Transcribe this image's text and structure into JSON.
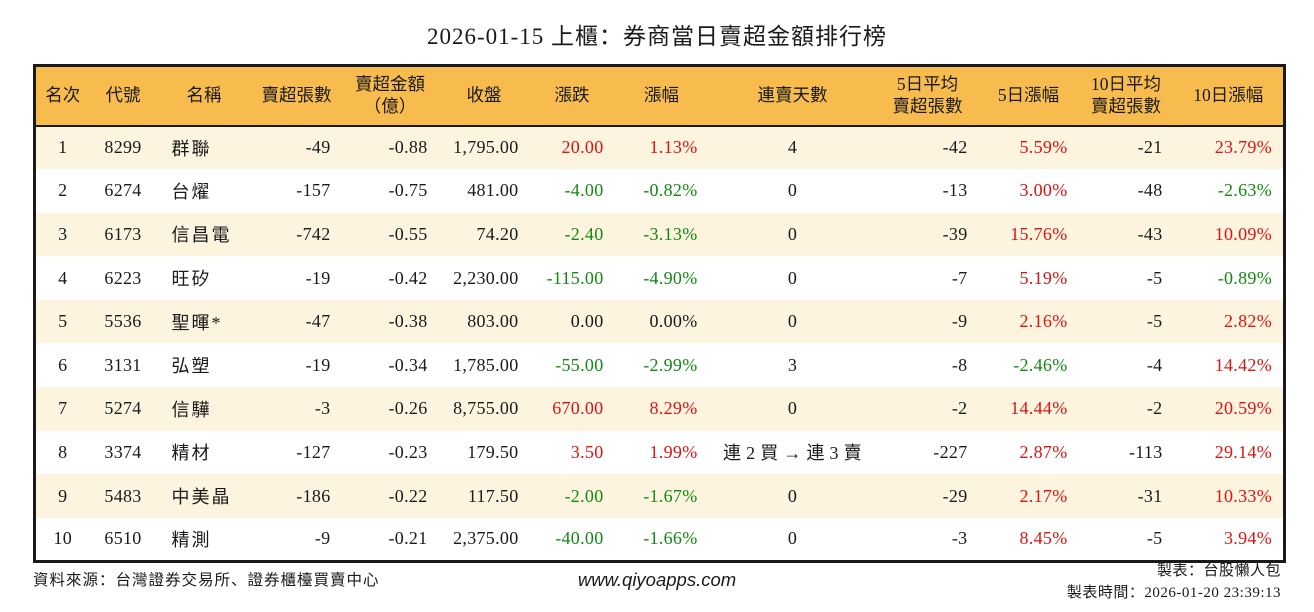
{
  "title": "2026-01-15 上櫃：券商當日賣超金額排行榜",
  "colors": {
    "header_bg": "#F7BC4D",
    "stripe_bg": "#FCF4DE",
    "border": "#1A1A1A",
    "up": "#E01212",
    "down": "#128A12",
    "text": "#1A1A1A"
  },
  "table": {
    "headers": [
      "名次",
      "代號",
      "名稱",
      "賣超張數",
      "賣超金額\n（億）",
      "收盤",
      "漲跌",
      "漲幅",
      "連賣天數",
      "5日平均\n賣超張數",
      "5日漲幅",
      "10日平均\n賣超張數",
      "10日漲幅"
    ],
    "rows": [
      {
        "rank": "1",
        "code": "8299",
        "name": "群聯",
        "net_sell": "-49",
        "amount": "-0.88",
        "close": "1,795.00",
        "change": "20.00",
        "change_pct": "1.13%",
        "streak": "4",
        "avg5_net_sell": "-42",
        "pct_5d": "5.59%",
        "avg10_net_sell": "-21",
        "pct_10d": "23.79%",
        "change_tone": "up",
        "pct5_tone": "up",
        "pct10_tone": "up"
      },
      {
        "rank": "2",
        "code": "6274",
        "name": "台燿",
        "net_sell": "-157",
        "amount": "-0.75",
        "close": "481.00",
        "change": "-4.00",
        "change_pct": "-0.82%",
        "streak": "0",
        "avg5_net_sell": "-13",
        "pct_5d": "3.00%",
        "avg10_net_sell": "-48",
        "pct_10d": "-2.63%",
        "change_tone": "down",
        "pct5_tone": "up",
        "pct10_tone": "down"
      },
      {
        "rank": "3",
        "code": "6173",
        "name": "信昌電",
        "net_sell": "-742",
        "amount": "-0.55",
        "close": "74.20",
        "change": "-2.40",
        "change_pct": "-3.13%",
        "streak": "0",
        "avg5_net_sell": "-39",
        "pct_5d": "15.76%",
        "avg10_net_sell": "-43",
        "pct_10d": "10.09%",
        "change_tone": "down",
        "pct5_tone": "up",
        "pct10_tone": "up"
      },
      {
        "rank": "4",
        "code": "6223",
        "name": "旺矽",
        "net_sell": "-19",
        "amount": "-0.42",
        "close": "2,230.00",
        "change": "-115.00",
        "change_pct": "-4.90%",
        "streak": "0",
        "avg5_net_sell": "-7",
        "pct_5d": "5.19%",
        "avg10_net_sell": "-5",
        "pct_10d": "-0.89%",
        "change_tone": "down",
        "pct5_tone": "up",
        "pct10_tone": "down"
      },
      {
        "rank": "5",
        "code": "5536",
        "name": "聖暉*",
        "net_sell": "-47",
        "amount": "-0.38",
        "close": "803.00",
        "change": "0.00",
        "change_pct": "0.00%",
        "streak": "0",
        "avg5_net_sell": "-9",
        "pct_5d": "2.16%",
        "avg10_net_sell": "-5",
        "pct_10d": "2.82%",
        "change_tone": "flat",
        "pct5_tone": "up",
        "pct10_tone": "up"
      },
      {
        "rank": "6",
        "code": "3131",
        "name": "弘塑",
        "net_sell": "-19",
        "amount": "-0.34",
        "close": "1,785.00",
        "change": "-55.00",
        "change_pct": "-2.99%",
        "streak": "3",
        "avg5_net_sell": "-8",
        "pct_5d": "-2.46%",
        "avg10_net_sell": "-4",
        "pct_10d": "14.42%",
        "change_tone": "down",
        "pct5_tone": "down",
        "pct10_tone": "up"
      },
      {
        "rank": "7",
        "code": "5274",
        "name": "信驊",
        "net_sell": "-3",
        "amount": "-0.26",
        "close": "8,755.00",
        "change": "670.00",
        "change_pct": "8.29%",
        "streak": "0",
        "avg5_net_sell": "-2",
        "pct_5d": "14.44%",
        "avg10_net_sell": "-2",
        "pct_10d": "20.59%",
        "change_tone": "up",
        "pct5_tone": "up",
        "pct10_tone": "up"
      },
      {
        "rank": "8",
        "code": "3374",
        "name": "精材",
        "net_sell": "-127",
        "amount": "-0.23",
        "close": "179.50",
        "change": "3.50",
        "change_pct": "1.99%",
        "streak": "連 2 買 → 連 3 賣",
        "avg5_net_sell": "-227",
        "pct_5d": "2.87%",
        "avg10_net_sell": "-113",
        "pct_10d": "29.14%",
        "change_tone": "up",
        "pct5_tone": "up",
        "pct10_tone": "up"
      },
      {
        "rank": "9",
        "code": "5483",
        "name": "中美晶",
        "net_sell": "-186",
        "amount": "-0.22",
        "close": "117.50",
        "change": "-2.00",
        "change_pct": "-1.67%",
        "streak": "0",
        "avg5_net_sell": "-29",
        "pct_5d": "2.17%",
        "avg10_net_sell": "-31",
        "pct_10d": "10.33%",
        "change_tone": "down",
        "pct5_tone": "up",
        "pct10_tone": "up"
      },
      {
        "rank": "10",
        "code": "6510",
        "name": "精測",
        "net_sell": "-9",
        "amount": "-0.21",
        "close": "2,375.00",
        "change": "-40.00",
        "change_pct": "-1.66%",
        "streak": "0",
        "avg5_net_sell": "-3",
        "pct_5d": "8.45%",
        "avg10_net_sell": "-5",
        "pct_10d": "3.94%",
        "change_tone": "down",
        "pct5_tone": "up",
        "pct10_tone": "up"
      }
    ]
  },
  "footer": {
    "source": "資料來源：台灣證券交易所、證券櫃檯買賣中心",
    "website": "www.qiyoapps.com",
    "credit": "製表：台股懶人包",
    "timestamp": "製表時間：2026-01-20 23:39:13"
  }
}
